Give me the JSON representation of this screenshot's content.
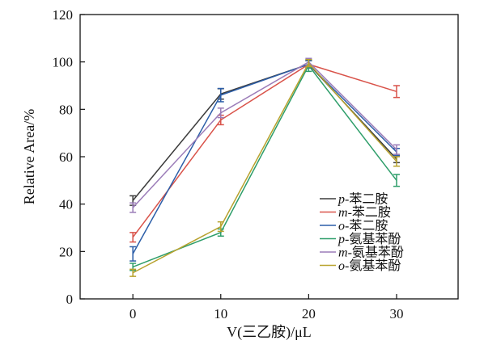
{
  "chart_data": {
    "type": "line",
    "title": "",
    "xlabel": "V(三乙胺)/μL",
    "ylabel": "Relative Area/%",
    "x": [
      0,
      10,
      20,
      30
    ],
    "xticks": [
      "0",
      "10",
      "20",
      "30"
    ],
    "xlim": [
      -6,
      37
    ],
    "yticks": [
      "0",
      "20",
      "40",
      "60",
      "80",
      "100",
      "120"
    ],
    "ylim": [
      0,
      120
    ],
    "grid": false,
    "legend_position": "right-center",
    "series": [
      {
        "name": "p-苯二胺",
        "prefix": "p",
        "suffix": "-苯二胺",
        "color": "#3b3b3b",
        "values": [
          41.5,
          86.5,
          99,
          59
        ],
        "errors": [
          2.0,
          2.2,
          1.5,
          1.5
        ]
      },
      {
        "name": "m-苯二胺",
        "prefix": "m",
        "suffix": "-苯二胺",
        "color": "#d9534a",
        "values": [
          26,
          75.5,
          99,
          87.5
        ],
        "errors": [
          2.0,
          2.0,
          1.5,
          2.5
        ]
      },
      {
        "name": "o-苯二胺",
        "prefix": "o",
        "suffix": "-苯二胺",
        "color": "#2c5ea8",
        "values": [
          19,
          86,
          99,
          62
        ],
        "errors": [
          3.0,
          2.8,
          1.5,
          1.5
        ]
      },
      {
        "name": "p-氨基苯酚",
        "prefix": "p",
        "suffix": "-氨基苯酚",
        "color": "#2e9e6a",
        "values": [
          13.5,
          28,
          98.5,
          50
        ],
        "errors": [
          1.5,
          1.5,
          2.5,
          2.5
        ]
      },
      {
        "name": "m-氨基苯酚",
        "prefix": "m",
        "suffix": "-氨基苯酚",
        "color": "#9b7cb8",
        "values": [
          38.5,
          78.5,
          100,
          63
        ],
        "errors": [
          2.0,
          2.0,
          1.5,
          2.0
        ]
      },
      {
        "name": "o-氨基苯酚",
        "prefix": "o",
        "suffix": "-氨基苯酚",
        "color": "#b8a22e",
        "values": [
          11,
          30.5,
          99.5,
          58
        ],
        "errors": [
          1.5,
          2.0,
          1.5,
          2.0
        ]
      }
    ]
  }
}
